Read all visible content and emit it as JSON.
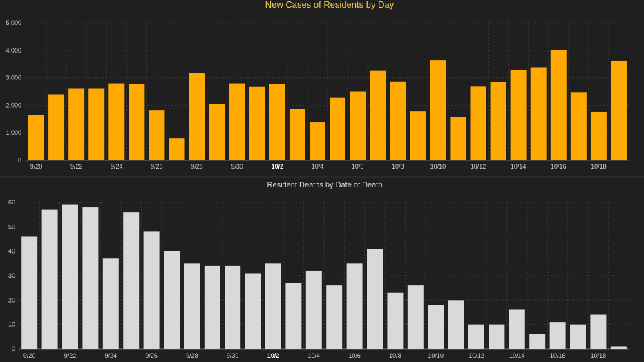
{
  "chart_data": [
    {
      "type": "bar",
      "title": "New Cases of Residents by Day",
      "xlabel": "",
      "ylabel": "",
      "ylim": [
        0,
        5000
      ],
      "yticks": [
        "0",
        "1,000",
        "2,000",
        "3,000",
        "4,000",
        "5,000"
      ],
      "color": "#ffaa00",
      "grid": true,
      "categories": [
        "9/20",
        "9/21",
        "9/22",
        "9/23",
        "9/24",
        "9/25",
        "9/26",
        "9/27",
        "9/28",
        "9/29",
        "9/30",
        "10/1",
        "10/2",
        "10/3",
        "10/4",
        "10/5",
        "10/6",
        "10/7",
        "10/8",
        "10/9",
        "10/10",
        "10/11",
        "10/12",
        "10/13",
        "10/14",
        "10/15",
        "10/16",
        "10/17",
        "10/18",
        "10/19"
      ],
      "values": [
        1650,
        2400,
        2600,
        2600,
        2800,
        2770,
        1830,
        800,
        3180,
        2050,
        2800,
        2670,
        2770,
        1860,
        1380,
        2270,
        2500,
        3250,
        2870,
        1780,
        3640,
        1570,
        2680,
        2840,
        3290,
        3380,
        4000,
        2480,
        1760,
        3620
      ],
      "tick_labels": [
        "9/20",
        "9/22",
        "9/24",
        "9/26",
        "9/28",
        "9/30",
        "10/2",
        "10/4",
        "10/6",
        "10/8",
        "10/10",
        "10/12",
        "10/14",
        "10/16",
        "10/18"
      ],
      "highlight_label": "10/2"
    },
    {
      "type": "bar",
      "title": "Resident Deaths by Date of Death",
      "xlabel": "",
      "ylabel": "",
      "ylim": [
        0,
        60
      ],
      "yticks": [
        "0",
        "10",
        "20",
        "30",
        "40",
        "50",
        "60"
      ],
      "color": "#d9d9d9",
      "grid": true,
      "categories": [
        "9/20",
        "9/21",
        "9/22",
        "9/23",
        "9/24",
        "9/25",
        "9/26",
        "9/27",
        "9/28",
        "9/29",
        "9/30",
        "10/1",
        "10/2",
        "10/3",
        "10/4",
        "10/5",
        "10/6",
        "10/7",
        "10/8",
        "10/9",
        "10/10",
        "10/11",
        "10/12",
        "10/13",
        "10/14",
        "10/15",
        "10/16",
        "10/17",
        "10/18",
        "10/19"
      ],
      "values": [
        46,
        57,
        59,
        58,
        37,
        56,
        48,
        40,
        35,
        34,
        34,
        31,
        35,
        27,
        32,
        26,
        35,
        41,
        23,
        26,
        18,
        20,
        10,
        10,
        16,
        6,
        11,
        10,
        14,
        1
      ],
      "tick_labels": [
        "9/20",
        "9/22",
        "9/24",
        "9/26",
        "9/28",
        "9/30",
        "10/2",
        "10/4",
        "10/6",
        "10/8",
        "10/10",
        "10/12",
        "10/14",
        "10/16",
        "10/18"
      ],
      "highlight_label": "10/2"
    }
  ]
}
